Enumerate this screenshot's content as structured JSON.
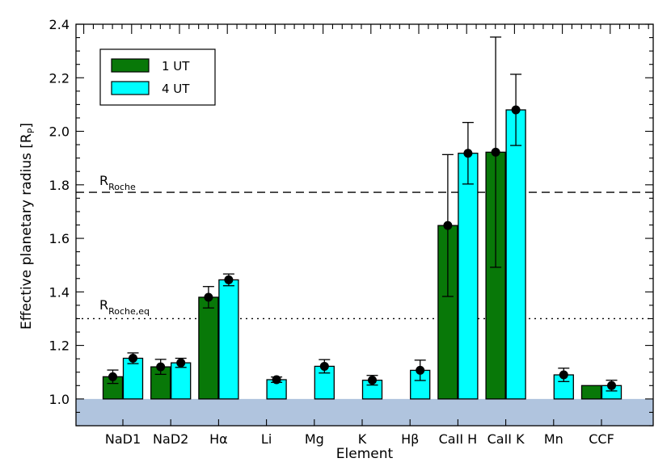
{
  "chart_data": {
    "type": "bar",
    "title": "",
    "xlabel": "Element",
    "ylabel_main": "Effective planetary radius [R",
    "ylabel_sub": "P",
    "ylabel_end": "]",
    "ylim": [
      0.9,
      2.4
    ],
    "yticks": [
      "1.0",
      "1.2",
      "1.4",
      "1.6",
      "1.8",
      "2.0",
      "2.2",
      "2.4"
    ],
    "yticks_values": [
      1.0,
      1.2,
      1.4,
      1.6,
      1.8,
      2.0,
      2.2,
      2.4
    ],
    "categories": [
      "NaD1",
      "NaD2",
      "Hα",
      "Li",
      "Mg",
      "K",
      "Hβ",
      "CaII H",
      "CaII K",
      "Mn",
      "CCF"
    ],
    "series": [
      {
        "name": "1 UT",
        "color": "#087808",
        "values": [
          1.083,
          1.12,
          1.38,
          null,
          null,
          null,
          null,
          1.648,
          1.922,
          null,
          1.05
        ],
        "err": [
          0.025,
          0.028,
          0.04,
          null,
          null,
          null,
          null,
          0.265,
          0.43,
          null,
          null
        ]
      },
      {
        "name": "4 UT",
        "color": "#00ffff",
        "values": [
          1.152,
          1.135,
          1.445,
          1.072,
          1.122,
          1.07,
          1.107,
          1.918,
          2.08,
          1.09,
          1.05
        ],
        "err": [
          0.02,
          0.017,
          0.022,
          0.01,
          0.025,
          0.018,
          0.038,
          0.115,
          0.133,
          0.025,
          0.02
        ]
      }
    ],
    "reference_lines": [
      {
        "label_main": "R",
        "label_sub": "Roche",
        "value": 1.772,
        "style": "dashed"
      },
      {
        "label_main": "R",
        "label_sub": "Roche,eq",
        "value": 1.3,
        "style": "dotted"
      }
    ],
    "shaded_region": {
      "from": 0.9,
      "to": 1.0,
      "color": "#b0c4de"
    },
    "legend_position": "top-left",
    "grid": false
  }
}
